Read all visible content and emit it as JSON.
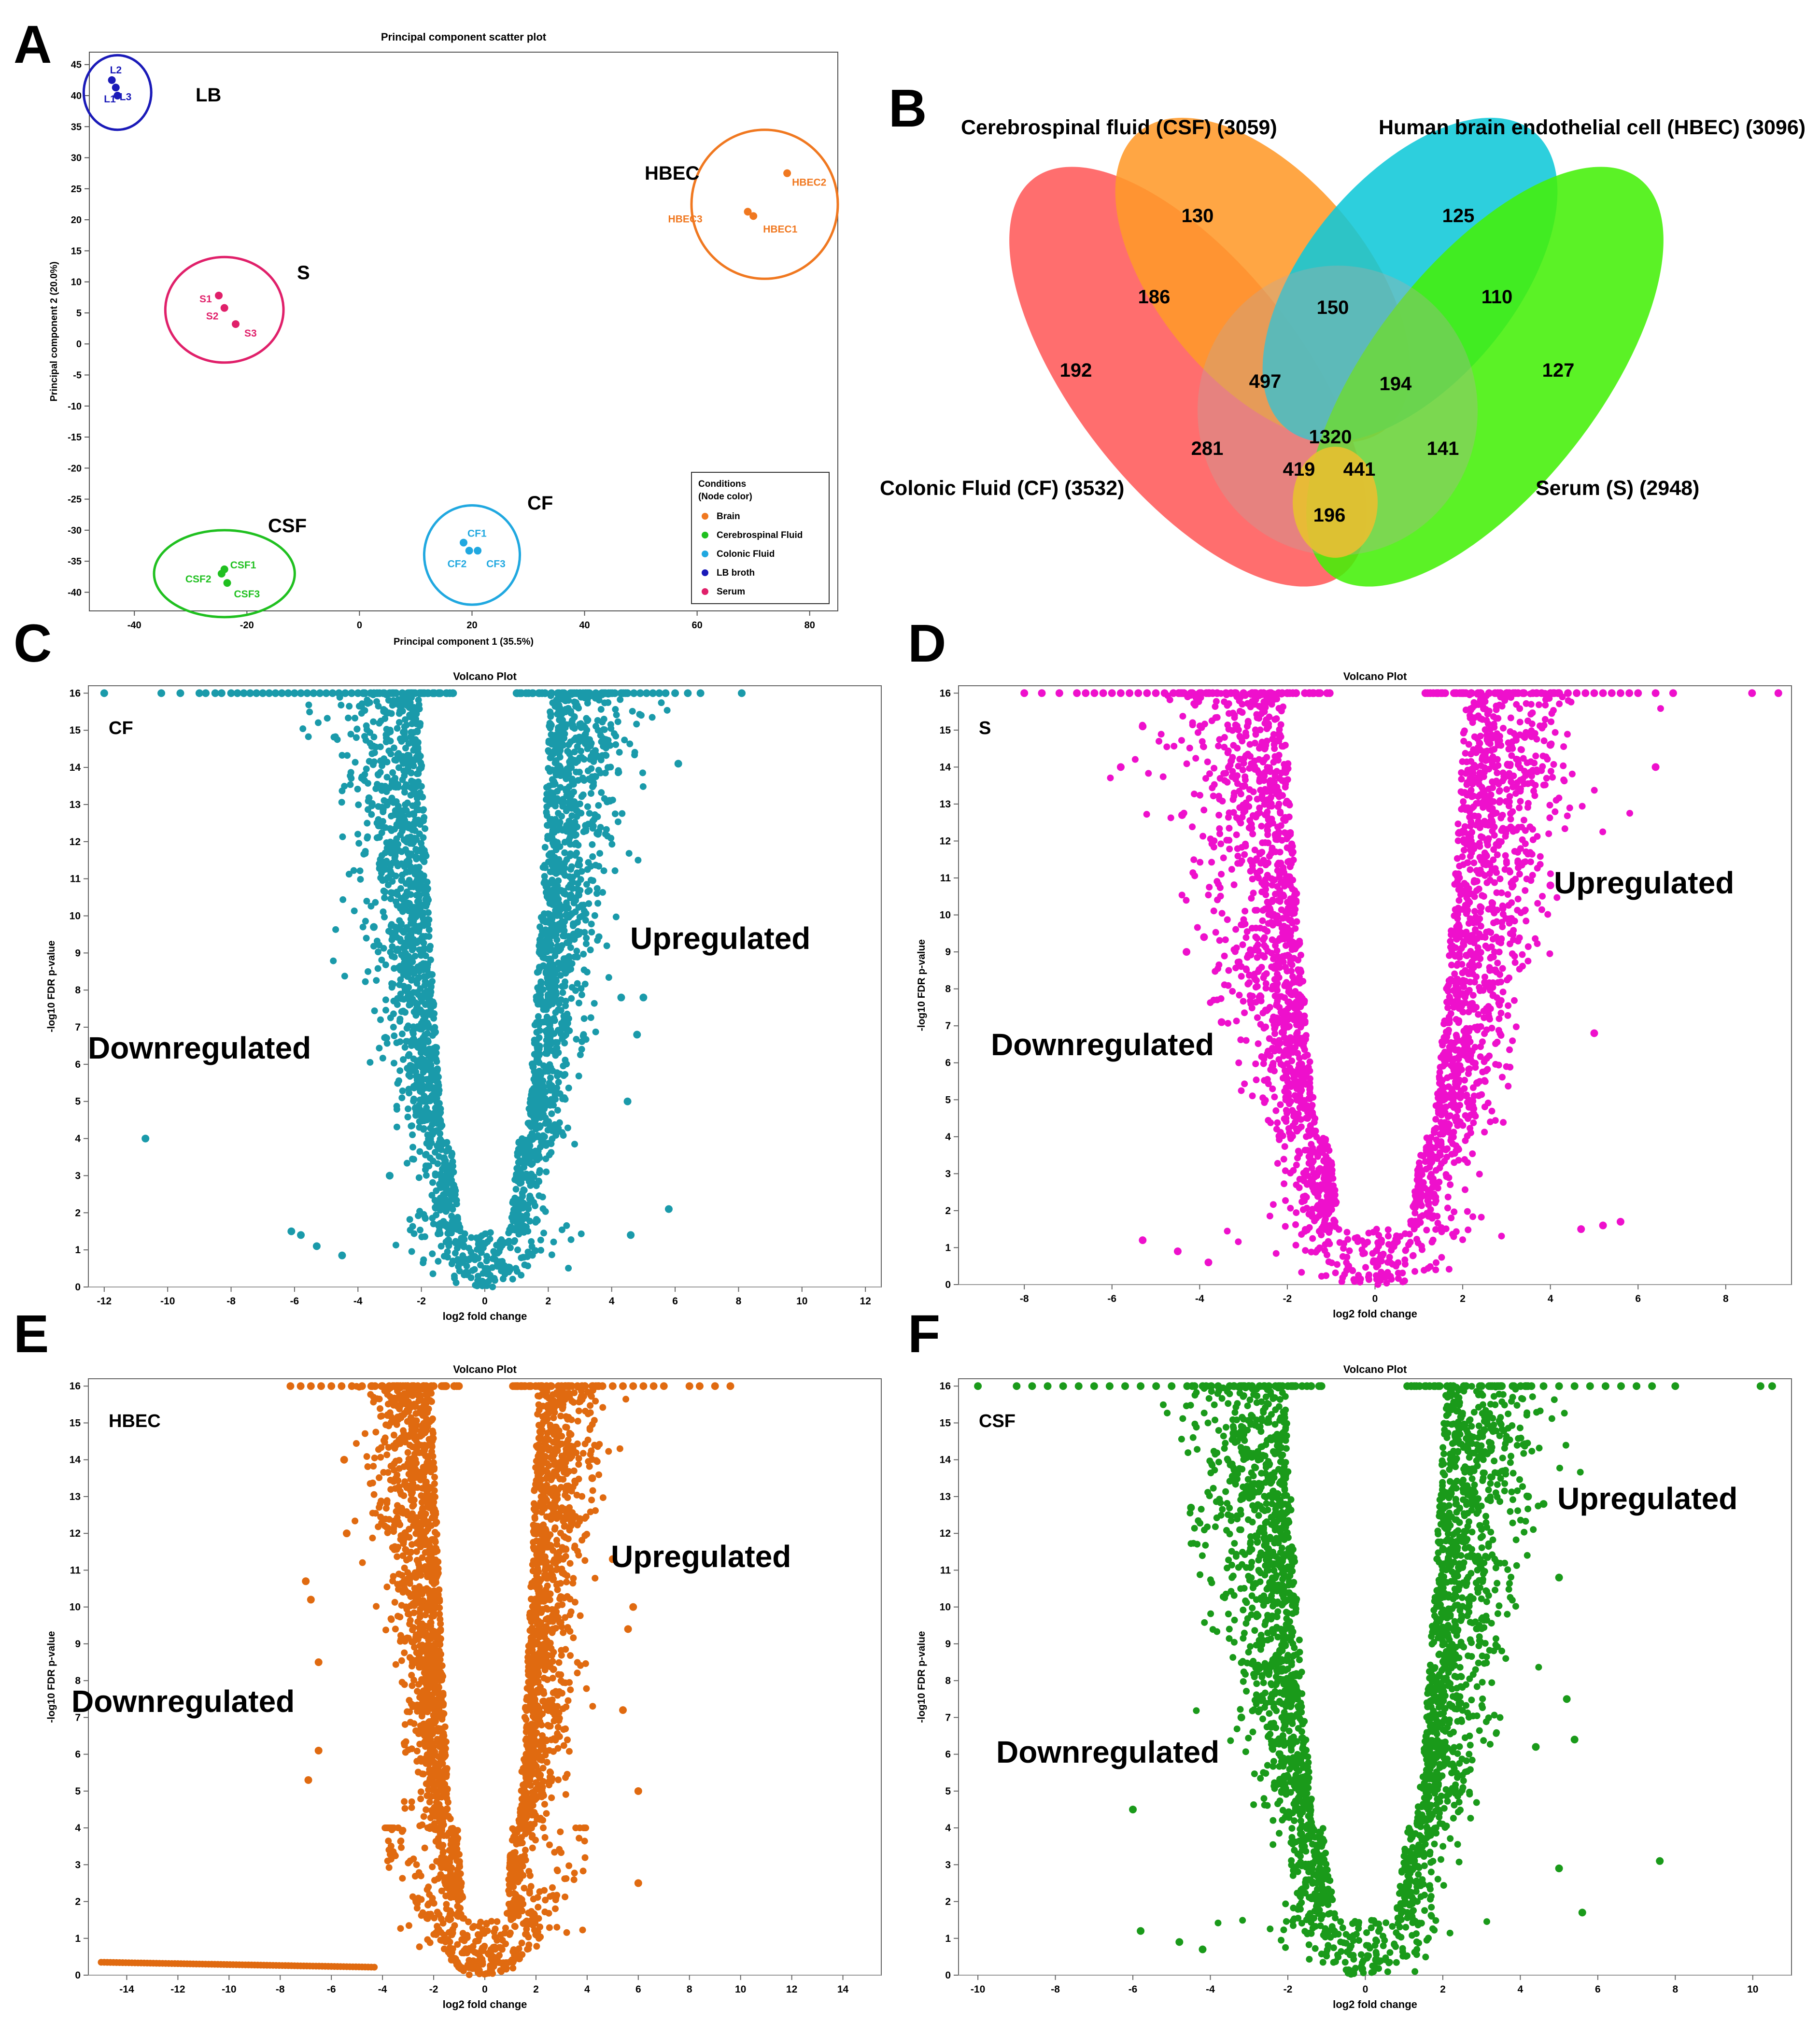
{
  "panels": {
    "A": "A",
    "B": "B",
    "C": "C",
    "D": "D",
    "E": "E",
    "F": "F"
  },
  "chart_data": [
    {
      "panel": "A",
      "type": "scatter",
      "title": "Principal component scatter plot",
      "xlabel": "Principal component 1 (35.5%)",
      "ylabel": "Principal component 2 (20.0%)",
      "xlim": [
        -48,
        85
      ],
      "ylim": [
        -43,
        47
      ],
      "xticks": [
        -40,
        -20,
        0,
        20,
        40,
        60,
        80
      ],
      "yticks": [
        45,
        40,
        35,
        30,
        25,
        20,
        15,
        10,
        5,
        0,
        -5,
        -10,
        -15,
        -20,
        -25,
        -30,
        -35,
        -40
      ],
      "groups": [
        {
          "name": "LB",
          "color": "#1a1ab8",
          "points": [
            {
              "label": "L1",
              "x": -43,
              "y": 40
            },
            {
              "label": "L2",
              "x": -44,
              "y": 42.5
            },
            {
              "label": "L3",
              "x": -43.3,
              "y": 41.3
            }
          ],
          "ellipse": {
            "cx": -43,
            "cy": 40.5,
            "rx": 6,
            "ry": 6
          }
        },
        {
          "name": "HBEC",
          "color": "#f07820",
          "points": [
            {
              "label": "HBEC2",
              "x": 76,
              "y": 27.5
            },
            {
              "label": "HBEC3",
              "x": 69,
              "y": 21.3
            },
            {
              "label": "HBEC1",
              "x": 70,
              "y": 20.6
            }
          ],
          "ellipse": {
            "cx": 72,
            "cy": 22.5,
            "rx": 13,
            "ry": 12
          }
        },
        {
          "name": "S",
          "color": "#e0206a",
          "points": [
            {
              "label": "S1",
              "x": -25,
              "y": 7.8
            },
            {
              "label": "S2",
              "x": -24,
              "y": 5.8
            },
            {
              "label": "S3",
              "x": -22,
              "y": 3.2
            }
          ],
          "ellipse": {
            "cx": -24,
            "cy": 5.5,
            "rx": 10.5,
            "ry": 8.5
          }
        },
        {
          "name": "CF",
          "color": "#20a8e0",
          "points": [
            {
              "label": "CF1",
              "x": 18.5,
              "y": -32
            },
            {
              "label": "CF2",
              "x": 19.5,
              "y": -33.3
            },
            {
              "label": "CF3",
              "x": 21,
              "y": -33.3
            }
          ],
          "ellipse": {
            "cx": 20,
            "cy": -34,
            "rx": 8.5,
            "ry": 8
          }
        },
        {
          "name": "CSF",
          "color": "#20c020",
          "points": [
            {
              "label": "CSF1",
              "x": -24,
              "y": -36.3
            },
            {
              "label": "CSF2",
              "x": -24.5,
              "y": -37
            },
            {
              "label": "CSF3",
              "x": -23.5,
              "y": -38.5
            }
          ],
          "ellipse": {
            "cx": -24,
            "cy": -37,
            "rx": 12.5,
            "ry": 7
          }
        }
      ],
      "legend": {
        "title1": "Conditions",
        "title2": "(Node color)",
        "entries": [
          {
            "label": "Brain",
            "color": "#f07820"
          },
          {
            "label": "Cerebrospinal Fluid",
            "color": "#20c020"
          },
          {
            "label": "Colonic Fluid",
            "color": "#20a8e0"
          },
          {
            "label": "LB broth",
            "color": "#1a1ab8"
          },
          {
            "label": "Serum",
            "color": "#e0206a"
          }
        ],
        "position": "bottom-right"
      }
    },
    {
      "panel": "B",
      "type": "venn",
      "sets": [
        {
          "name": "Colonic Fluid (CF) (3532)",
          "color": "#ff5a5a"
        },
        {
          "name": "Cerebrospinal fluid (CSF) (3059)",
          "color": "#ff9a2a"
        },
        {
          "name": "Human brain endothelial cell (HBEC) (3096)",
          "color": "#10c8d8"
        },
        {
          "name": "Serum (S) (2948)",
          "color": "#44f008"
        }
      ],
      "regions": [
        "130",
        "125",
        "186",
        "150",
        "110",
        "192",
        "497",
        "194",
        "127",
        "281",
        "1320",
        "141",
        "419",
        "441",
        "196"
      ]
    },
    {
      "panel": "C",
      "type": "scatter",
      "subtype": "volcano",
      "title": "Volcano Plot",
      "xlabel": "log2 fold change",
      "ylabel": "-log10 FDR p-value",
      "tag": "CF",
      "color": "#1a9aaa",
      "xlim": [
        -12.5,
        12.5
      ],
      "ylim": [
        0,
        16.2
      ],
      "xticks": [
        -12,
        -10,
        -8,
        -6,
        -4,
        -2,
        0,
        2,
        4,
        6,
        8,
        10,
        12
      ],
      "yticks": [
        0,
        1,
        2,
        3,
        4,
        5,
        6,
        7,
        8,
        9,
        10,
        11,
        12,
        13,
        14,
        15,
        16
      ],
      "annotations": {
        "up": "Upregulated",
        "down": "Downregulated"
      },
      "outliers": [
        [
          -10.7,
          4.0
        ],
        [
          -6.1,
          1.5
        ],
        [
          -5.8,
          1.4
        ],
        [
          -5.3,
          1.1
        ],
        [
          -4.5,
          0.85
        ],
        [
          -3.5,
          9.7
        ],
        [
          -3.0,
          3.0
        ],
        [
          -2.5,
          8.0
        ],
        [
          4.6,
          1.4
        ],
        [
          5.8,
          2.1
        ],
        [
          6.1,
          14.1
        ],
        [
          5.0,
          7.8
        ],
        [
          4.8,
          6.8
        ],
        [
          4.5,
          5.0
        ],
        [
          4.3,
          7.8
        ]
      ],
      "capped": {
        "left": [
          -12,
          -10.2,
          -9.6,
          -9,
          -8.8,
          -8.5,
          -8.3,
          -8,
          -7.8,
          -7.6,
          -7.4,
          -7.2,
          -7,
          -6.8,
          -6.6,
          -6.4,
          -6.2,
          -6,
          -5.8,
          -5.6,
          -5.4,
          -5.2,
          -5,
          -4.8,
          -4.6,
          -4.4,
          -4.2,
          -4,
          -3.8,
          -3.6,
          -3.4,
          -3.2,
          -3,
          -2.8,
          -2.6,
          -2.4,
          -2.2,
          -2,
          -1.8,
          -1.6,
          -1.4,
          -1.2,
          -1.0
        ],
        "right": [
          1.1,
          1.3,
          1.5,
          1.7,
          1.9,
          2.1,
          2.3,
          2.5,
          2.7,
          2.9,
          3.1,
          3.3,
          3.5,
          3.7,
          3.9,
          4.1,
          4.3,
          4.5,
          4.7,
          4.9,
          5.1,
          5.3,
          5.5,
          5.7,
          6.0,
          6.4,
          6.8,
          8.1
        ]
      }
    },
    {
      "panel": "D",
      "type": "scatter",
      "subtype": "volcano",
      "title": "Volcano Plot",
      "xlabel": "log2 fold change",
      "ylabel": "-log10 FDR p-value",
      "tag": "S",
      "color": "#ee10cc",
      "xlim": [
        -9.5,
        9.5
      ],
      "ylim": [
        0,
        16.2
      ],
      "xticks": [
        -8,
        -6,
        -4,
        -2,
        0,
        2,
        4,
        6,
        8
      ],
      "yticks": [
        0,
        1,
        2,
        3,
        4,
        5,
        6,
        7,
        8,
        9,
        10,
        11,
        12,
        13,
        14,
        15,
        16
      ],
      "annotations": {
        "up": "Upregulated",
        "down": "Downregulated"
      },
      "outliers": [
        [
          -5.3,
          15.1
        ],
        [
          -5.8,
          14.0
        ],
        [
          -4.4,
          12.7
        ],
        [
          -4.3,
          9.0
        ],
        [
          -3.9,
          9.4
        ],
        [
          -3.5,
          7.1
        ],
        [
          -5.3,
          1.2
        ],
        [
          -4.5,
          0.9
        ],
        [
          -3.8,
          0.6
        ],
        [
          4.0,
          14.6
        ],
        [
          6.4,
          14.0
        ],
        [
          5.0,
          6.8
        ],
        [
          4.7,
          1.5
        ],
        [
          5.2,
          1.6
        ],
        [
          5.6,
          1.7
        ],
        [
          3.6,
          13.9
        ],
        [
          4.0,
          10.8
        ]
      ],
      "capped": {
        "left": [
          -8,
          -7.6,
          -7.2,
          -6.8,
          -6.6,
          -6.4,
          -6.2,
          -6,
          -5.8,
          -5.6,
          -5.4,
          -5.2,
          -5,
          -4.8,
          -4.6,
          -4.4,
          -4.2,
          -4,
          -3.8,
          -3.6,
          -3.4,
          -3.2,
          -3,
          -2.8,
          -2.6,
          -2.4,
          -2.2,
          -2,
          -1.8,
          -1.6,
          -1.4
        ],
        "right": [
          1.2,
          1.4,
          1.6,
          1.8,
          2.0,
          2.2,
          2.4,
          2.6,
          2.8,
          3.0,
          3.2,
          3.4,
          3.6,
          3.8,
          4.0,
          4.2,
          4.4,
          4.6,
          4.8,
          5.0,
          5.2,
          5.4,
          5.6,
          5.8,
          6.0,
          6.4,
          6.8,
          8.6,
          9.2
        ]
      }
    },
    {
      "panel": "E",
      "type": "scatter",
      "subtype": "volcano",
      "title": "Volcano Plot",
      "xlabel": "log2 fold change",
      "ylabel": "-log10 FDR p-value",
      "tag": "HBEC",
      "color": "#e06a10",
      "xlim": [
        -15.5,
        15.5
      ],
      "ylim": [
        0,
        16.2
      ],
      "xticks": [
        -14,
        -12,
        -10,
        -8,
        -6,
        -4,
        -2,
        0,
        2,
        4,
        6,
        8,
        10,
        12,
        14
      ],
      "yticks": [
        0,
        1,
        2,
        3,
        4,
        5,
        6,
        7,
        8,
        9,
        10,
        11,
        12,
        13,
        14,
        15,
        16
      ],
      "annotations": {
        "up": "Upregulated",
        "down": "Downregulated"
      },
      "outliers": [
        [
          -7.0,
          10.7
        ],
        [
          -6.8,
          10.2
        ],
        [
          -6.5,
          8.5
        ],
        [
          -6.5,
          6.1
        ],
        [
          -6.9,
          5.3
        ],
        [
          -5.5,
          14.0
        ],
        [
          -5.4,
          12.0
        ],
        [
          5.8,
          10.0
        ],
        [
          5.6,
          9.4
        ],
        [
          5.4,
          7.2
        ],
        [
          6.0,
          5.0
        ],
        [
          6.0,
          2.5
        ],
        [
          5.0,
          11.3
        ],
        [
          4.2,
          13.5
        ]
      ],
      "capped": {
        "left": [
          -7.6,
          -7.2,
          -6.8,
          -6.4,
          -6.0,
          -5.6,
          -5.2,
          -4.8,
          -4.4,
          -4.0,
          -3.6,
          -3.2,
          -2.8,
          -2.4,
          -2.0,
          -1.6,
          -1.2
        ],
        "right": [
          1.4,
          1.8,
          2.2,
          2.6,
          3.0,
          3.4,
          3.8,
          4.2,
          4.6,
          5.0,
          5.4,
          5.8,
          6.2,
          6.6,
          7.0,
          8.0,
          8.4,
          9.0,
          9.6
        ]
      }
    },
    {
      "panel": "F",
      "type": "scatter",
      "subtype": "volcano",
      "title": "Volcano Plot",
      "xlabel": "log2 fold change",
      "ylabel": "-log10 FDR p-value",
      "tag": "CSF",
      "color": "#1a9a1a",
      "xlim": [
        -10.5,
        11
      ],
      "ylim": [
        0,
        16.2
      ],
      "xticks": [
        -10,
        -8,
        -6,
        -4,
        -2,
        0,
        2,
        4,
        6,
        8,
        10
      ],
      "yticks": [
        0,
        1,
        2,
        3,
        4,
        5,
        6,
        7,
        8,
        9,
        10,
        11,
        12,
        13,
        14,
        15,
        16
      ],
      "annotations": {
        "up": "Upregulated",
        "down": "Downregulated"
      },
      "outliers": [
        [
          -4.5,
          12.7
        ],
        [
          -3.2,
          7.0
        ],
        [
          -6.0,
          4.5
        ],
        [
          -5.8,
          1.2
        ],
        [
          -4.8,
          0.9
        ],
        [
          -4.2,
          0.7
        ],
        [
          4.2,
          13.0
        ],
        [
          4.6,
          12.8
        ],
        [
          5.0,
          10.8
        ],
        [
          5.2,
          7.5
        ],
        [
          5.4,
          6.4
        ],
        [
          7.6,
          3.1
        ],
        [
          5.6,
          1.7
        ],
        [
          5.0,
          2.9
        ],
        [
          4.4,
          6.2
        ]
      ],
      "capped": {
        "left": [
          -10,
          -9,
          -8.6,
          -8.2,
          -7.8,
          -7.4,
          -7,
          -6.6,
          -6.2,
          -5.8,
          -5.4,
          -5,
          -4.6,
          -4.2,
          -3.8,
          -3.4,
          -3,
          -2.6,
          -2.2,
          -1.8,
          -1.4
        ],
        "right": [
          1.4,
          1.8,
          2.2,
          2.6,
          3.0,
          3.4,
          3.8,
          4.2,
          4.6,
          5.0,
          5.4,
          5.8,
          6.2,
          6.6,
          7.0,
          7.4,
          8.0,
          10.2,
          10.5
        ]
      }
    }
  ]
}
